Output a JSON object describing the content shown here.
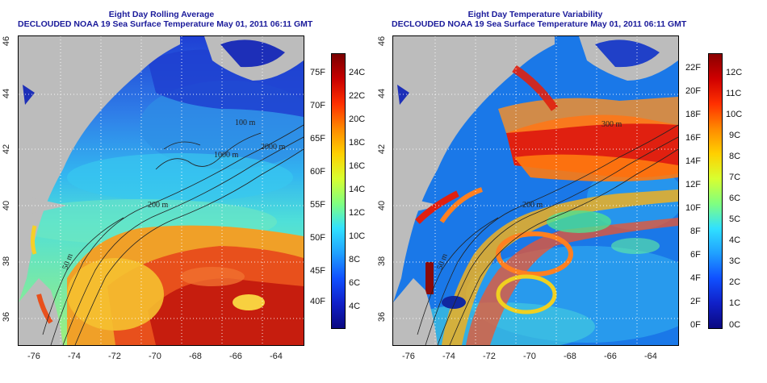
{
  "left": {
    "title1": "Eight Day Rolling Average",
    "title2": "DECLOUDED NOAA 19 Sea Surface Temperature May 01, 2011 06:11 GMT",
    "colorbar_left": [
      "75F",
      "70F",
      "65F",
      "60F",
      "55F",
      "50F",
      "45F",
      "40F"
    ],
    "colorbar_right": [
      "24C",
      "22C",
      "20C",
      "18C",
      "16C",
      "14C",
      "12C",
      "10C",
      "8C",
      "6C",
      "4C"
    ]
  },
  "right": {
    "title1": "Eight Day Temperature Variability",
    "title2": "DECLOUDED NOAA 19 Sea Surface Temperature May 01, 2011 06:11 GMT",
    "colorbar_left": [
      "22F",
      "20F",
      "18F",
      "16F",
      "14F",
      "12F",
      "10F",
      "8F",
      "6F",
      "4F",
      "2F",
      "0F"
    ],
    "colorbar_right": [
      "12C",
      "11C",
      "10C",
      "9C",
      "8C",
      "7C",
      "6C",
      "5C",
      "4C",
      "3C",
      "2C",
      "1C",
      "0C"
    ]
  },
  "axes": {
    "x_ticks": [
      "-76",
      "-74",
      "-72",
      "-70",
      "-68",
      "-66",
      "-64"
    ],
    "y_ticks": [
      "46",
      "44",
      "42",
      "40",
      "38",
      "36"
    ]
  },
  "contours": {
    "labels": [
      "100 m",
      "1000 m",
      "2000 m",
      "200 m",
      "50 m",
      "300 m"
    ]
  },
  "colors": {
    "land": "#bcbcbc",
    "title": "#1a1a9a"
  }
}
